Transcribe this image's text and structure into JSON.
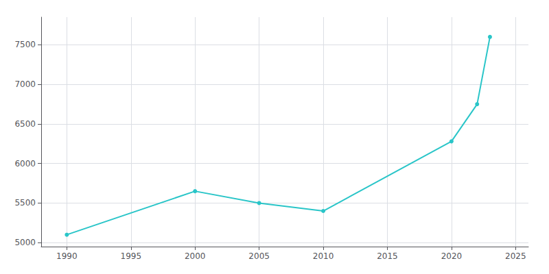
{
  "chart_data": {
    "type": "line",
    "x": [
      1990,
      2000,
      2005,
      2010,
      2020,
      2022,
      2023
    ],
    "values": [
      5100,
      5650,
      5500,
      5400,
      6280,
      6750,
      7600
    ],
    "color": "#29c5c8",
    "marker": "circle",
    "xlim": [
      1988,
      2026
    ],
    "ylim": [
      4950,
      7850
    ],
    "xticks": [
      1990,
      1995,
      2000,
      2005,
      2010,
      2015,
      2020,
      2025
    ],
    "yticks": [
      5000,
      5500,
      6000,
      6500,
      7000,
      7500
    ],
    "grid": true
  }
}
